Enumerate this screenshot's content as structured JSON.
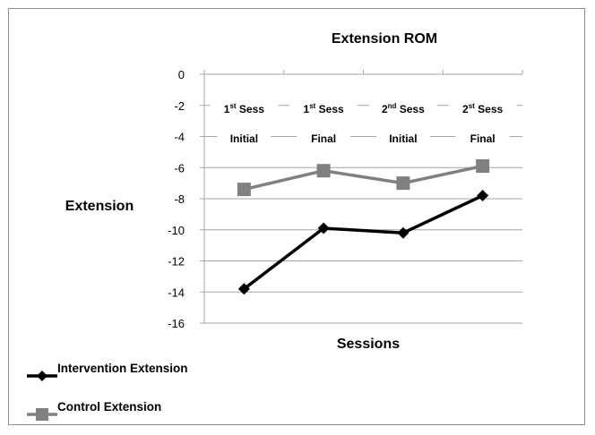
{
  "chart_data": {
    "type": "line",
    "title": "Extension ROM",
    "xlabel": "Sessions",
    "ylabel": "Extension",
    "ylim": [
      -16,
      0
    ],
    "yticks": [
      0,
      -2,
      -4,
      -6,
      -8,
      -10,
      -12,
      -14,
      -16
    ],
    "categories": [
      {
        "ord": "1",
        "sup": "st",
        "rest": "Sess",
        "line2": "Initial"
      },
      {
        "ord": "1",
        "sup": "st",
        "rest": "Sess",
        "line2": "Final"
      },
      {
        "ord": "2",
        "sup": "nd",
        "rest": "Sess",
        "line2": "Initial"
      },
      {
        "ord": "2",
        "sup": "st",
        "rest": "Sess",
        "line2": "Final"
      }
    ],
    "series": [
      {
        "name": "Intervention Extension",
        "values": [
          -13.8,
          -9.9,
          -10.2,
          -7.8
        ],
        "color": "#000000",
        "marker": "diamond"
      },
      {
        "name": "Control Extension",
        "values": [
          -7.4,
          -6.2,
          -7.0,
          -5.9
        ],
        "color": "#808080",
        "marker": "square"
      }
    ],
    "grid": true,
    "legend_position": "bottom-left"
  }
}
